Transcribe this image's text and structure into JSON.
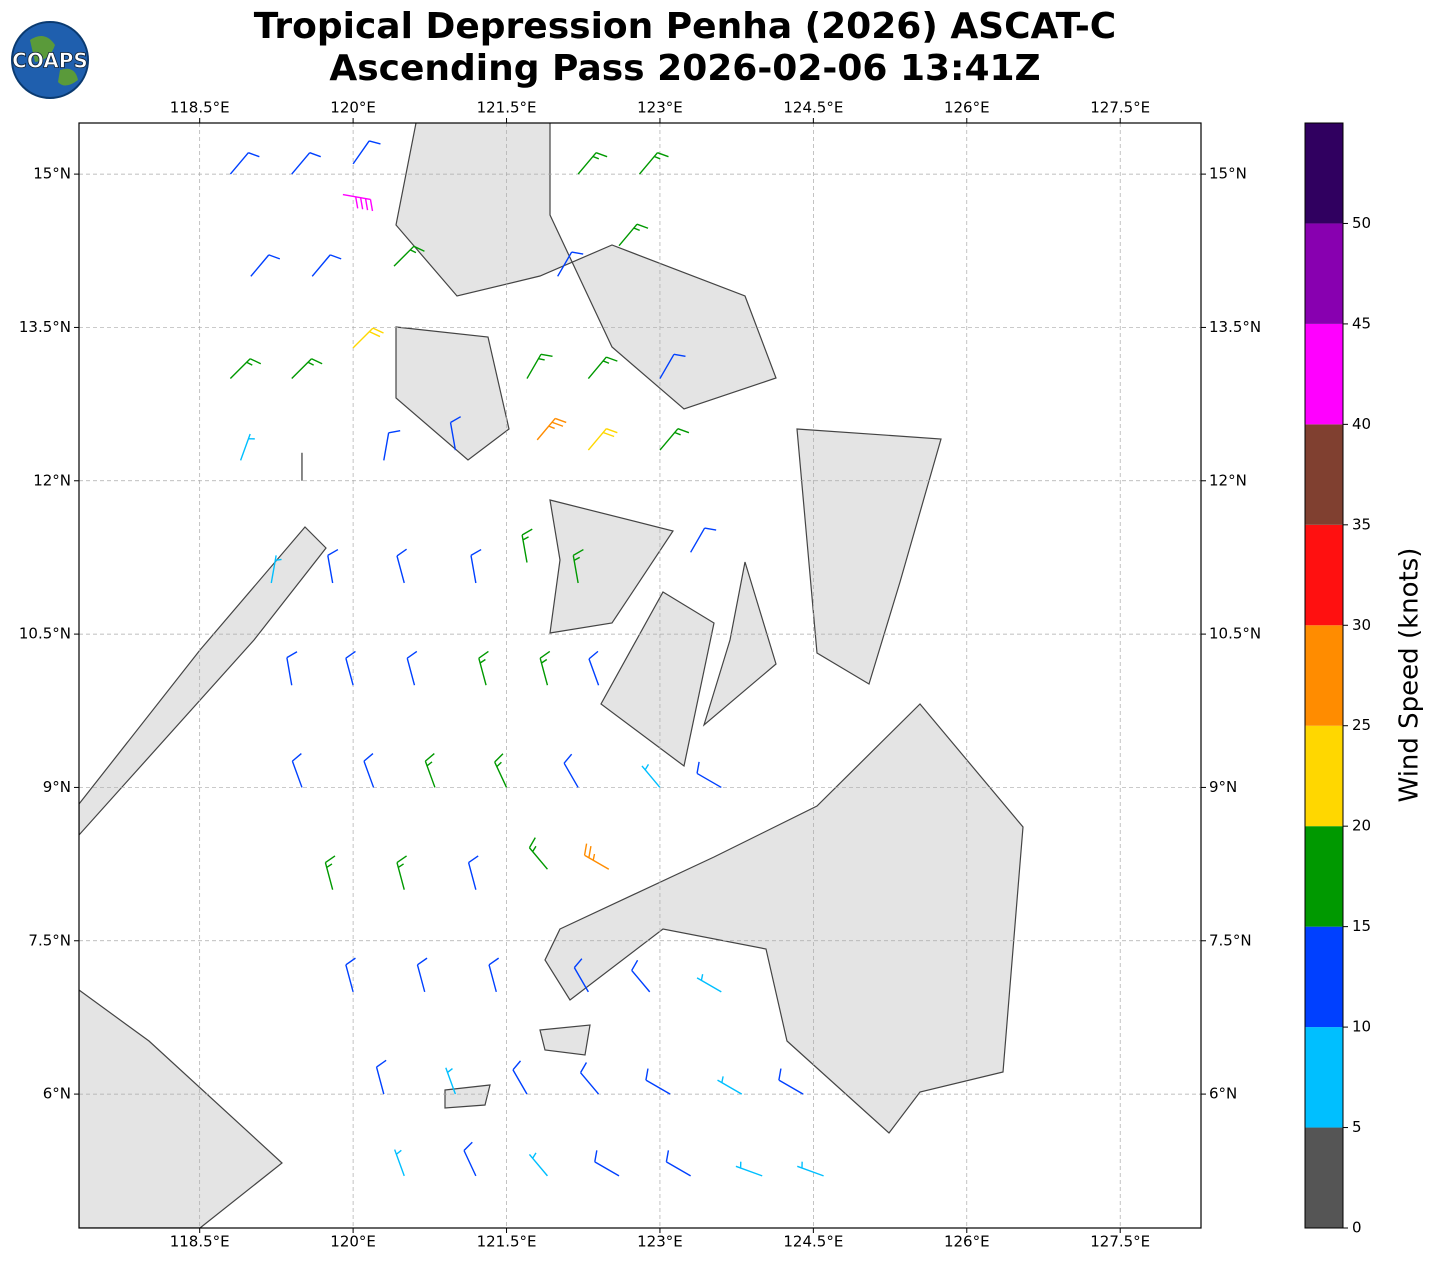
{
  "logo": {
    "text": "COAPS"
  },
  "chart_data": {
    "type": "barbs",
    "title": "Tropical Depression Penha (2026) ASCAT-C",
    "subtitle": "Ascending Pass 2026-02-06 13:41Z",
    "xlim": [
      117.32,
      128.29
    ],
    "ylim": [
      4.69,
      15.5
    ],
    "xticks": [
      {
        "value": 118.5,
        "label": "118.5°E"
      },
      {
        "value": 120,
        "label": "120°E"
      },
      {
        "value": 121.5,
        "label": "121.5°E"
      },
      {
        "value": 123,
        "label": "123°E"
      },
      {
        "value": 124.5,
        "label": "124.5°E"
      },
      {
        "value": 126,
        "label": "126°E"
      },
      {
        "value": 127.5,
        "label": "127.5°E"
      }
    ],
    "yticks": [
      {
        "value": 6,
        "label": "6°N"
      },
      {
        "value": 7.5,
        "label": "7.5°N"
      },
      {
        "value": 9,
        "label": "9°N"
      },
      {
        "value": 10.5,
        "label": "10.5°N"
      },
      {
        "value": 12,
        "label": "12°N"
      },
      {
        "value": 13.5,
        "label": "13.5°N"
      },
      {
        "value": 15,
        "label": "15°N"
      }
    ],
    "grid": true,
    "barbs": {
      "lon": [
        118.8,
        119.4,
        120.0,
        122.2,
        122.8,
        119.0,
        119.6,
        120.4,
        122.0,
        122.6,
        118.8,
        119.4,
        120.0,
        121.7,
        122.3,
        123.0,
        118.9,
        119.5,
        120.3,
        121.0,
        121.8,
        122.3,
        123.0,
        119.2,
        119.8,
        120.5,
        121.2,
        121.7,
        122.2,
        123.3,
        119.4,
        120.0,
        120.6,
        121.3,
        121.9,
        122.4,
        119.5,
        120.2,
        120.8,
        121.5,
        122.2,
        123.0,
        123.6,
        119.8,
        120.5,
        121.2,
        121.9,
        122.5,
        120.0,
        120.7,
        121.4,
        122.3,
        122.9,
        123.6,
        120.3,
        121.0,
        121.7,
        122.4,
        123.1,
        123.8,
        124.4,
        120.5,
        121.2,
        121.9,
        122.6,
        123.3,
        124.0,
        124.6,
        119.9
      ],
      "lat": [
        15.0,
        15.0,
        15.1,
        15.0,
        15.0,
        14.0,
        14.0,
        14.1,
        14.0,
        14.3,
        13.0,
        13.0,
        13.3,
        13.0,
        13.0,
        13.0,
        12.2,
        12.0,
        12.2,
        12.3,
        12.4,
        12.3,
        12.3,
        11.0,
        11.0,
        11.0,
        11.0,
        11.2,
        11.0,
        11.3,
        10.0,
        10.0,
        10.0,
        10.0,
        10.0,
        10.0,
        9.0,
        9.0,
        9.0,
        9.0,
        9.0,
        9.0,
        9.0,
        8.0,
        8.0,
        8.0,
        8.2,
        8.2,
        7.0,
        7.0,
        7.0,
        7.0,
        7.0,
        7.0,
        6.0,
        6.0,
        6.0,
        6.0,
        6.0,
        6.0,
        6.0,
        5.2,
        5.2,
        5.2,
        5.2,
        5.2,
        5.2,
        5.2,
        14.8
      ],
      "speed": [
        12,
        12,
        12,
        17,
        17,
        12,
        12,
        17,
        12,
        17,
        17,
        17,
        22,
        17,
        17,
        12,
        7,
        3,
        12,
        12,
        27,
        22,
        17,
        7,
        12,
        12,
        12,
        17,
        17,
        12,
        12,
        12,
        12,
        17,
        17,
        12,
        12,
        12,
        17,
        17,
        12,
        7,
        12,
        17,
        17,
        12,
        17,
        27,
        12,
        12,
        12,
        12,
        12,
        7,
        12,
        7,
        12,
        12,
        12,
        7,
        12,
        7,
        12,
        7,
        12,
        12,
        7,
        7,
        42
      ],
      "direction": [
        40,
        40,
        35,
        40,
        40,
        40,
        40,
        45,
        30,
        40,
        45,
        45,
        45,
        30,
        40,
        30,
        20,
        0,
        10,
        350,
        40,
        40,
        40,
        10,
        350,
        345,
        350,
        350,
        350,
        30,
        350,
        345,
        345,
        345,
        345,
        340,
        340,
        340,
        340,
        335,
        330,
        320,
        300,
        345,
        345,
        345,
        320,
        300,
        345,
        345,
        345,
        330,
        320,
        300,
        345,
        340,
        330,
        320,
        300,
        300,
        300,
        340,
        335,
        320,
        300,
        300,
        290,
        290,
        100
      ]
    },
    "colorbar": {
      "label": "Wind Speed (knots)",
      "bounds": [
        0,
        5,
        10,
        15,
        20,
        25,
        30,
        35,
        40,
        45,
        50,
        55
      ],
      "colors": [
        "#555555",
        "#00bfff",
        "#0040ff",
        "#009900",
        "#ffd700",
        "#ff8c00",
        "#ff1010",
        "#804030",
        "#ff00ff",
        "#8800b0",
        "#300060"
      ],
      "ticks": [
        0,
        5,
        10,
        15,
        20,
        25,
        30,
        35,
        40,
        45,
        50
      ]
    }
  }
}
